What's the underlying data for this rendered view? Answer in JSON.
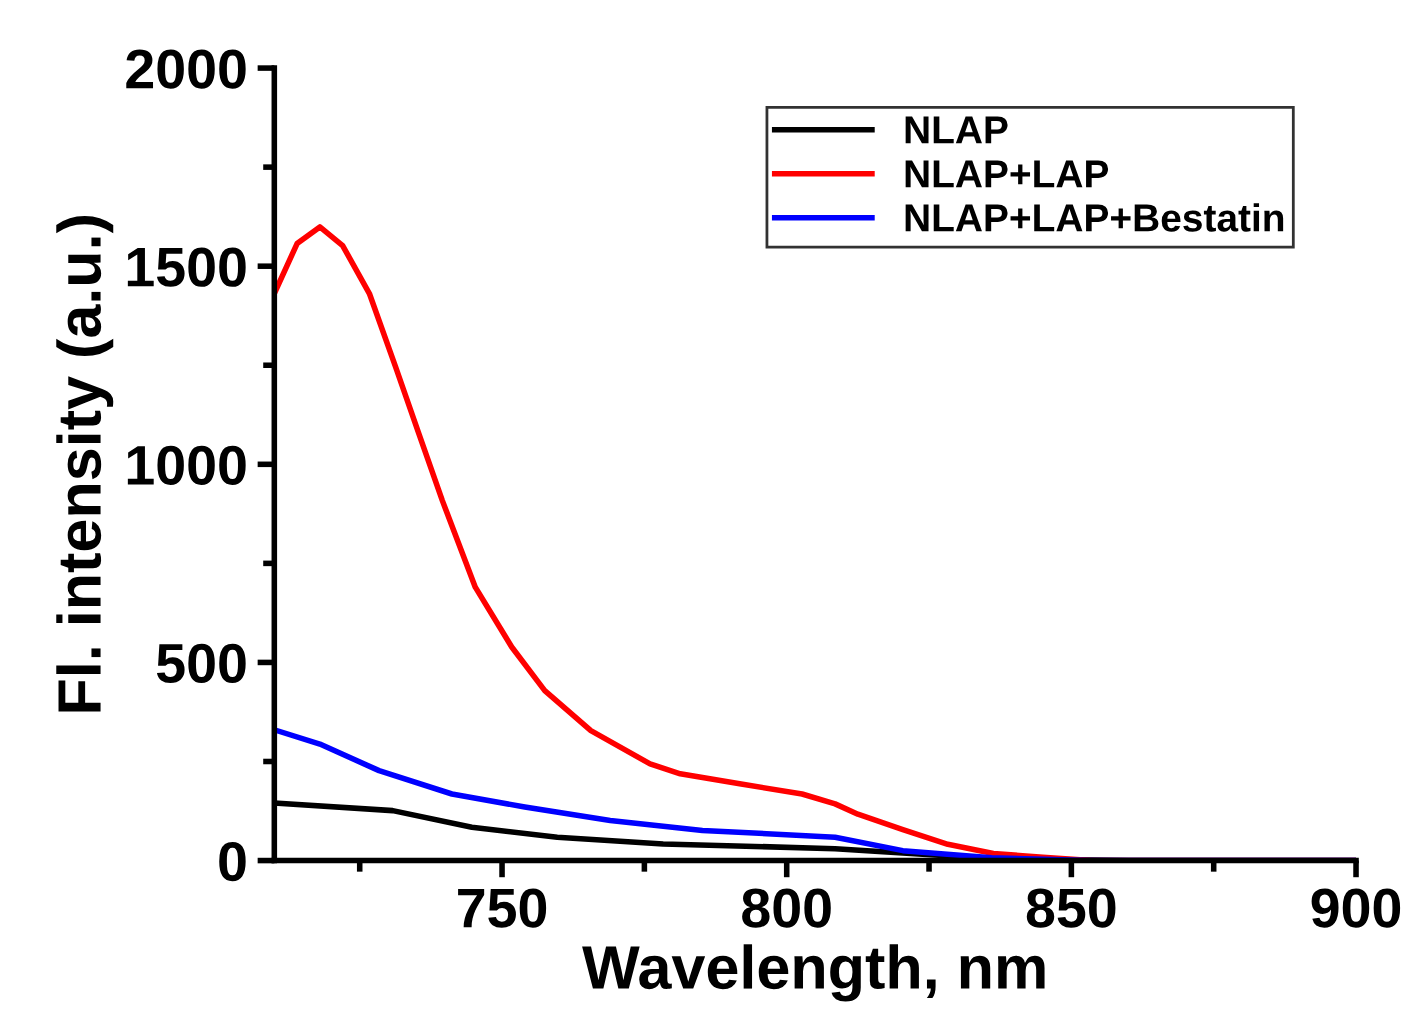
{
  "chart_data": {
    "type": "line",
    "xlabel": "Wavelength, nm",
    "ylabel": "Fl. intensity (a.u.)",
    "xlim": [
      710,
      900
    ],
    "xticks": [
      750,
      800,
      850,
      900
    ],
    "ylim": [
      0,
      2000
    ],
    "yticks": [
      0,
      500,
      1000,
      1500,
      2000
    ],
    "grid": false,
    "legend": "top right",
    "marker": "none",
    "line_style": "solid",
    "series": [
      {
        "name": "NLAP",
        "color": "#000000",
        "x": [
          710,
          730.8,
          744.7,
          759.7,
          778.3,
          808.5,
          836,
          860,
          900
        ],
        "values": [
          145,
          126,
          84,
          59,
          42,
          30,
          5,
          0,
          0
        ]
      },
      {
        "name": "NLAP+LAP",
        "color": "#ff0000",
        "x": [
          710,
          714,
          718,
          722,
          726.7,
          731.3,
          735.4,
          739.5,
          745.3,
          751.7,
          757.5,
          765.6,
          776,
          781.3,
          792,
          802.7,
          808.5,
          812.5,
          820.4,
          828.3,
          836.3,
          845,
          853.5,
          900
        ],
        "values": [
          1431,
          1557,
          1599,
          1552,
          1431,
          1246,
          1077,
          909,
          690,
          539,
          429,
          328,
          244,
          219,
          193,
          168,
          143,
          117,
          78,
          41,
          18,
          8,
          0,
          0
        ]
      },
      {
        "name": "NLAP+LAP+Bestatin",
        "color": "#0000ff",
        "x": [
          710,
          718,
          728.4,
          741.2,
          754,
          769,
          785.2,
          808.5,
          820.4,
          836,
          853,
          900
        ],
        "values": [
          330,
          294,
          227,
          168,
          135,
          101,
          76,
          59,
          25,
          7,
          0,
          0
        ]
      }
    ]
  }
}
